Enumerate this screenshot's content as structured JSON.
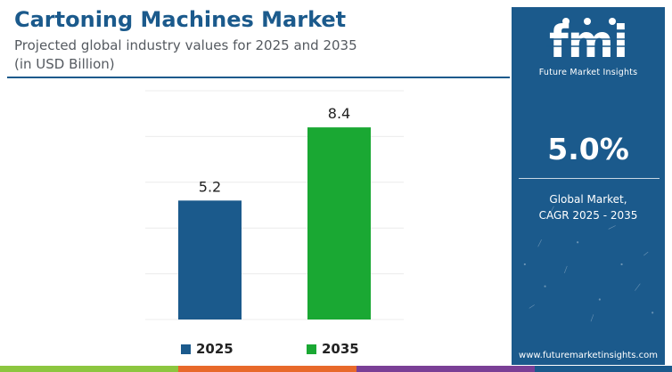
{
  "header": {
    "title": "Cartoning Machines Market",
    "subtitle": "Projected global industry values for 2025 and 2035",
    "unit": "(in USD Billion)"
  },
  "chart_data": {
    "type": "bar",
    "categories": [
      "2025",
      "2035"
    ],
    "values": [
      5.2,
      8.4
    ],
    "value_labels": [
      "5.2",
      "8.4"
    ],
    "colors": [
      "#1b5a8c",
      "#1aa833"
    ],
    "ylim": [
      0,
      10
    ],
    "grid": true,
    "legend": {
      "placement": "bottom",
      "entries": [
        {
          "label": "2025",
          "color": "#1b5a8c"
        },
        {
          "label": "2035",
          "color": "#1aa833"
        }
      ]
    },
    "title": "Cartoning Machines Market",
    "subtitle": "Projected global industry values for 2025 and 2035",
    "ylabel": "(in USD Billion)"
  },
  "sidebar": {
    "logo_letters": "fmi",
    "logo_tagline": "Future Market Insights",
    "cagr_value": "5.0%",
    "cagr_label_line1": "Global Market,",
    "cagr_label_line2": "CAGR 2025 - 2035",
    "website": "www.futuremarketinsights.com",
    "bg_color": "#1b5a8c"
  },
  "footer_strip_colors": [
    "#8cc63f",
    "#e8692a",
    "#7a3f96",
    "#1b5a8c"
  ]
}
